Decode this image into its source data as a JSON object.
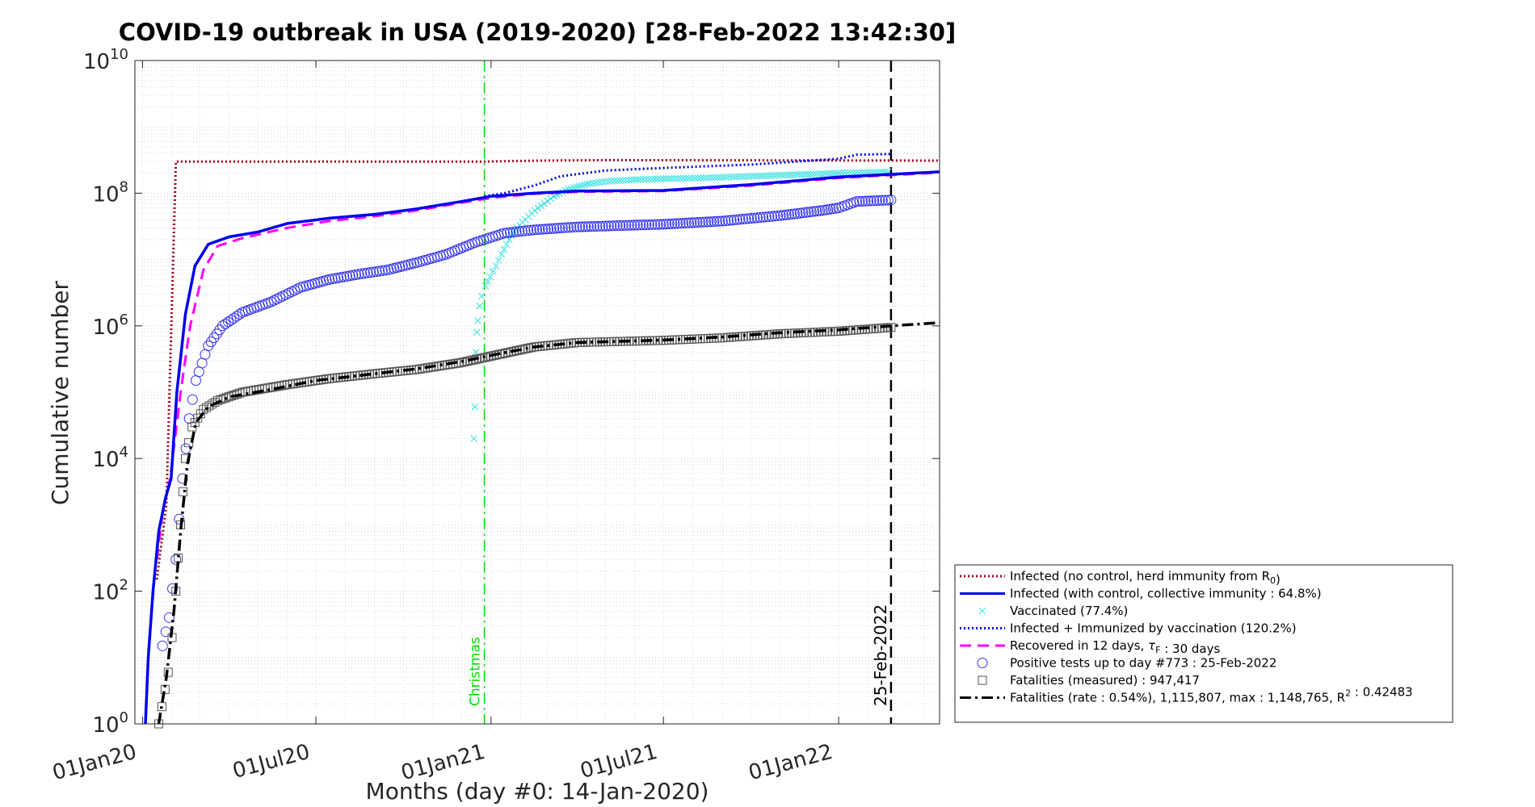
{
  "chart_data": {
    "type": "line",
    "title": "COVID-19 outbreak in USA (2019-2020) [28-Feb-2022 13:42:30]",
    "xlabel": "Months (day #0: 14-Jan-2020)",
    "ylabel": "Cumulative number",
    "x_axis": "date",
    "xlim": [
      "2019-12-24",
      "2022-04-17"
    ],
    "xticks": [
      {
        "date": "2020-01-01",
        "label": "01Jan20"
      },
      {
        "date": "2020-07-01",
        "label": "01Jul20"
      },
      {
        "date": "2021-01-01",
        "label": "01Jan21"
      },
      {
        "date": "2021-07-01",
        "label": "01Jul21"
      },
      {
        "date": "2022-01-01",
        "label": "01Jan22"
      }
    ],
    "yscale": "log",
    "ylim": [
      1,
      10000000000
    ],
    "yticks": [
      {
        "value": 1,
        "base": "10",
        "exp": "0"
      },
      {
        "value": 100,
        "base": "10",
        "exp": "2"
      },
      {
        "value": 10000,
        "base": "10",
        "exp": "4"
      },
      {
        "value": 1000000,
        "base": "10",
        "exp": "6"
      },
      {
        "value": 100000000,
        "base": "10",
        "exp": "8"
      },
      {
        "value": 10000000000,
        "base": "10",
        "exp": "10"
      }
    ],
    "grid": true,
    "minor_grid": true,
    "legend_position": "outside-right-bottom",
    "vlines": [
      {
        "date": "2020-12-25",
        "label": "Christmas",
        "color": "#00dd00",
        "style": "dashdot"
      },
      {
        "date": "2022-02-25",
        "label": "25-Feb-2022",
        "color": "#000000",
        "style": "dashed"
      }
    ],
    "series": [
      {
        "name": "Infected (no control, herd immunity from R",
        "name_sub": "0",
        "name_suffix": ")",
        "kind": "line",
        "color": "#a0001c",
        "style": "dotted",
        "points": [
          [
            "2020-01-16",
            150
          ],
          [
            "2020-01-26",
            2000
          ],
          [
            "2020-02-05",
            300000000
          ],
          [
            "2020-12-25",
            300000000
          ],
          [
            "2021-02-20",
            310000000
          ],
          [
            "2021-05-01",
            315000000
          ],
          [
            "2022-04-17",
            310000000
          ]
        ]
      },
      {
        "name": "Infected (with control, collective immunity : 64.8%)",
        "kind": "line",
        "color": "#0000ee",
        "style": "solid",
        "points": [
          [
            "2020-01-04",
            1
          ],
          [
            "2020-01-07",
            10
          ],
          [
            "2020-01-12",
            100
          ],
          [
            "2020-01-18",
            800
          ],
          [
            "2020-01-25",
            2500
          ],
          [
            "2020-01-31",
            5000
          ],
          [
            "2020-02-06",
            100000
          ],
          [
            "2020-02-15",
            1500000
          ],
          [
            "2020-02-25",
            8000000
          ],
          [
            "2020-03-10",
            17000000
          ],
          [
            "2020-04-01",
            22000000
          ],
          [
            "2020-05-01",
            26000000
          ],
          [
            "2020-06-01",
            35000000
          ],
          [
            "2020-07-15",
            42000000
          ],
          [
            "2020-09-01",
            48000000
          ],
          [
            "2020-10-15",
            58000000
          ],
          [
            "2020-12-01",
            75000000
          ],
          [
            "2021-01-01",
            90000000
          ],
          [
            "2021-02-15",
            100000000
          ],
          [
            "2021-04-01",
            108000000
          ],
          [
            "2021-07-01",
            110000000
          ],
          [
            "2021-10-01",
            135000000
          ],
          [
            "2022-01-01",
            175000000
          ],
          [
            "2022-04-17",
            210000000
          ]
        ]
      },
      {
        "name": "Vaccinated (77.4%)",
        "kind": "marker",
        "marker": "x",
        "color": "#33e0e0",
        "points": [
          [
            "2020-12-14",
            20000
          ],
          [
            "2020-12-15",
            60000
          ],
          [
            "2020-12-16",
            400000
          ],
          [
            "2020-12-17",
            800000
          ],
          [
            "2020-12-18",
            1200000
          ],
          [
            "2020-12-20",
            2000000
          ],
          [
            "2020-12-22",
            2800000
          ],
          [
            "2020-12-26",
            4000000
          ],
          [
            "2020-12-31",
            5500000
          ],
          [
            "2021-01-06",
            8000000
          ],
          [
            "2021-01-12",
            12000000
          ],
          [
            "2021-01-20",
            20000000
          ],
          [
            "2021-01-28",
            30000000
          ],
          [
            "2021-02-06",
            40000000
          ],
          [
            "2021-02-16",
            55000000
          ],
          [
            "2021-02-26",
            70000000
          ],
          [
            "2021-03-08",
            90000000
          ],
          [
            "2021-03-20",
            110000000
          ],
          [
            "2021-04-01",
            125000000
          ],
          [
            "2021-04-15",
            140000000
          ],
          [
            "2021-05-01",
            150000000
          ],
          [
            "2021-06-01",
            160000000
          ],
          [
            "2021-07-01",
            165000000
          ],
          [
            "2021-08-15",
            170000000
          ],
          [
            "2021-10-01",
            180000000
          ],
          [
            "2021-11-15",
            190000000
          ],
          [
            "2022-01-01",
            200000000
          ],
          [
            "2022-02-01",
            205000000
          ],
          [
            "2022-02-25",
            210000000
          ]
        ]
      },
      {
        "name": "Infected + Immunized by vaccination (120.2%)",
        "kind": "line",
        "color": "#0000ee",
        "style": "dotted",
        "points": [
          [
            "2020-12-25",
            90000000
          ],
          [
            "2021-01-15",
            100000000
          ],
          [
            "2021-02-15",
            130000000
          ],
          [
            "2021-03-15",
            180000000
          ],
          [
            "2021-05-01",
            220000000
          ],
          [
            "2021-07-01",
            240000000
          ],
          [
            "2021-10-01",
            270000000
          ],
          [
            "2022-01-01",
            330000000
          ],
          [
            "2022-01-20",
            380000000
          ],
          [
            "2022-02-25",
            390000000
          ]
        ]
      },
      {
        "name": "Recovered in 12 days, ",
        "name_greek": "τ",
        "name_greek_sub": "F",
        "name_suffix": " : 30 days",
        "kind": "line",
        "color": "#ff00ff",
        "style": "dashed",
        "points": [
          [
            "2020-01-16",
            300
          ],
          [
            "2020-01-22",
            1500
          ],
          [
            "2020-01-30",
            5000
          ],
          [
            "2020-02-10",
            100000
          ],
          [
            "2020-02-20",
            1000000
          ],
          [
            "2020-03-05",
            7000000
          ],
          [
            "2020-03-20",
            16000000
          ],
          [
            "2020-04-15",
            21000000
          ],
          [
            "2020-06-01",
            30000000
          ],
          [
            "2020-07-15",
            38000000
          ],
          [
            "2020-09-01",
            45000000
          ],
          [
            "2020-10-15",
            55000000
          ],
          [
            "2020-12-01",
            72000000
          ],
          [
            "2021-01-01",
            85000000
          ],
          [
            "2021-02-15",
            98000000
          ],
          [
            "2021-04-01",
            105000000
          ],
          [
            "2021-07-01",
            108000000
          ],
          [
            "2021-10-01",
            130000000
          ],
          [
            "2022-01-01",
            170000000
          ],
          [
            "2022-04-17",
            205000000
          ]
        ]
      },
      {
        "name": "Positive tests up to day #773 : 25-Feb-2022",
        "kind": "marker",
        "marker": "circle",
        "color": "#3333ee",
        "points": [
          [
            "2020-01-22",
            15
          ],
          [
            "2020-01-29",
            40
          ],
          [
            "2020-02-05",
            300
          ],
          [
            "2020-02-12",
            5000
          ],
          [
            "2020-02-19",
            40000
          ],
          [
            "2020-02-26",
            150000
          ],
          [
            "2020-03-10",
            500000
          ],
          [
            "2020-03-25",
            1000000
          ],
          [
            "2020-04-15",
            1600000
          ],
          [
            "2020-05-15",
            2300000
          ],
          [
            "2020-06-15",
            3800000
          ],
          [
            "2020-07-15",
            5000000
          ],
          [
            "2020-08-15",
            6000000
          ],
          [
            "2020-09-15",
            7000000
          ],
          [
            "2020-10-15",
            9000000
          ],
          [
            "2020-11-15",
            12000000
          ],
          [
            "2020-12-15",
            18000000
          ],
          [
            "2021-01-15",
            25000000
          ],
          [
            "2021-02-15",
            28000000
          ],
          [
            "2021-04-01",
            31000000
          ],
          [
            "2021-07-01",
            34000000
          ],
          [
            "2021-09-01",
            38000000
          ],
          [
            "2021-11-01",
            46000000
          ],
          [
            "2021-12-15",
            55000000
          ],
          [
            "2022-01-01",
            60000000
          ],
          [
            "2022-01-20",
            75000000
          ],
          [
            "2022-02-25",
            79000000
          ]
        ]
      },
      {
        "name": "Fatalities (measured) : 947,417",
        "kind": "marker",
        "marker": "square",
        "color": "#555555",
        "points": [
          [
            "2020-01-18",
            1
          ],
          [
            "2020-01-28",
            6
          ],
          [
            "2020-02-01",
            20
          ],
          [
            "2020-02-05",
            100
          ],
          [
            "2020-02-10",
            1000
          ],
          [
            "2020-02-15",
            10000
          ],
          [
            "2020-02-22",
            30000
          ],
          [
            "2020-03-05",
            55000
          ],
          [
            "2020-03-20",
            75000
          ],
          [
            "2020-04-15",
            100000
          ],
          [
            "2020-06-01",
            130000
          ],
          [
            "2020-07-15",
            160000
          ],
          [
            "2020-09-01",
            190000
          ],
          [
            "2020-10-15",
            220000
          ],
          [
            "2020-12-01",
            280000
          ],
          [
            "2021-01-01",
            350000
          ],
          [
            "2021-02-15",
            480000
          ],
          [
            "2021-04-01",
            560000
          ],
          [
            "2021-07-01",
            605000
          ],
          [
            "2021-09-01",
            660000
          ],
          [
            "2021-11-01",
            760000
          ],
          [
            "2022-01-01",
            830000
          ],
          [
            "2022-02-25",
            947417
          ]
        ]
      },
      {
        "name": "Fatalities (rate : 0.54%), 1,115,807, max : 1,148,765, R",
        "name_sup": "2",
        "name_suffix": " : 0.42483",
        "kind": "line",
        "color": "#000000",
        "style": "dashdot",
        "points": [
          [
            "2020-01-18",
            1
          ],
          [
            "2020-01-26",
            5
          ],
          [
            "2020-02-03",
            50
          ],
          [
            "2020-02-10",
            800
          ],
          [
            "2020-02-17",
            8000
          ],
          [
            "2020-02-26",
            35000
          ],
          [
            "2020-03-10",
            60000
          ],
          [
            "2020-04-01",
            85000
          ],
          [
            "2020-05-15",
            110000
          ],
          [
            "2020-07-01",
            150000
          ],
          [
            "2020-09-01",
            190000
          ],
          [
            "2020-10-15",
            225000
          ],
          [
            "2020-12-01",
            290000
          ],
          [
            "2021-01-01",
            360000
          ],
          [
            "2021-02-15",
            480000
          ],
          [
            "2021-04-01",
            560000
          ],
          [
            "2021-07-01",
            610000
          ],
          [
            "2021-09-01",
            680000
          ],
          [
            "2021-11-01",
            790000
          ],
          [
            "2022-01-01",
            870000
          ],
          [
            "2022-02-25",
            1000000
          ],
          [
            "2022-04-17",
            1115807
          ]
        ]
      }
    ]
  }
}
